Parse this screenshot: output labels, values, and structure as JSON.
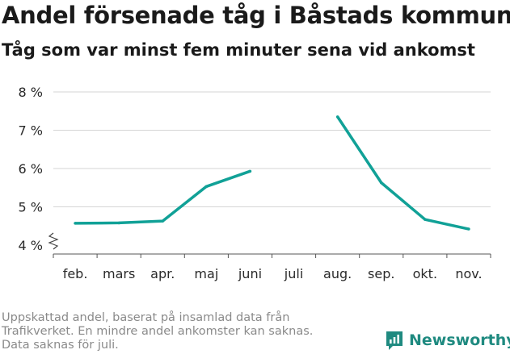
{
  "title": "Andel försenade tåg i Båstads kommun",
  "subtitle": "Tåg som var minst fem minuter sena vid ankomst",
  "footnote": [
    "Uppskattad andel, baserat på insamlad data från",
    "Trafikverket. En mindre andel ankomster kan saknas.",
    "Data saknas för juli."
  ],
  "brand": {
    "name": "Newsworthy",
    "icon": "newsworthy-logo-icon",
    "color": "#1f8a80"
  },
  "chart_data": {
    "type": "line",
    "title": "Andel försenade tåg i Båstads kommun",
    "subtitle": "Tåg som var minst fem minuter sena vid ankomst",
    "xlabel": "",
    "ylabel": "",
    "categories": [
      "feb.",
      "mars",
      "apr.",
      "maj",
      "juni",
      "juli",
      "aug.",
      "sep.",
      "okt.",
      "nov."
    ],
    "series": [
      {
        "values": [
          4.57,
          4.58,
          4.63,
          5.53,
          5.93,
          null,
          7.35,
          5.63,
          4.67,
          4.42
        ],
        "color": "#11a197"
      }
    ],
    "ylim": [
      4,
      8
    ],
    "yticks": [
      4,
      5,
      6,
      7,
      8
    ],
    "ytick_labels": [
      "4 %",
      "5 %",
      "6 %",
      "7 %",
      "8 %"
    ],
    "y_axis_break": true,
    "grid": true,
    "legend": "none"
  }
}
